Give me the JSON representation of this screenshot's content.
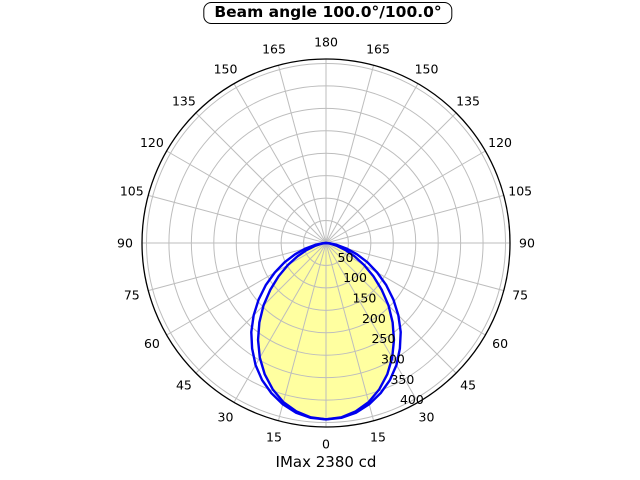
{
  "chart_data": {
    "type": "line",
    "projection": "polar",
    "title": "Beam angle 100.0°/100.0°",
    "caption": "IMax 2380 cd",
    "imax_cd": 2380,
    "beam_angle_plane1_deg": 100.0,
    "beam_angle_plane2_deg": 100.0,
    "theta_zero_position": "bottom",
    "theta_tick_step_deg": 15,
    "theta_labels": [
      0,
      15,
      30,
      45,
      60,
      75,
      90,
      105,
      120,
      135,
      150,
      165,
      180
    ],
    "r_ticks": [
      50,
      100,
      150,
      200,
      250,
      300,
      350,
      400
    ],
    "r_axis_max": 410,
    "r_label_angle_deg": 25,
    "grid_on": true,
    "grid_color": "#bdbdbd",
    "boundary_color": "#000000",
    "fill_color": "#ffffa0",
    "curve_color": "#0000ee",
    "angles_deg": [
      -90,
      -85,
      -80,
      -75,
      -70,
      -65,
      -60,
      -55,
      -50,
      -45,
      -40,
      -35,
      -30,
      -25,
      -20,
      -15,
      -10,
      -5,
      0,
      5,
      10,
      15,
      20,
      25,
      30,
      35,
      40,
      45,
      50,
      55,
      60,
      65,
      70,
      75,
      80,
      85,
      90
    ],
    "series": [
      {
        "name": "beam-curve-outer-plane",
        "filled": false,
        "values": [
          0,
          9,
          25,
          47,
          73,
          102,
          132,
          164,
          196,
          228,
          259,
          287,
          314,
          337,
          356,
          372,
          384,
          391,
          393,
          391,
          384,
          372,
          356,
          337,
          314,
          287,
          259,
          228,
          196,
          164,
          132,
          102,
          73,
          47,
          25,
          9,
          0
        ]
      },
      {
        "name": "beam-curve-inner-plane",
        "filled": true,
        "values": [
          0,
          3,
          12,
          26,
          46,
          70,
          98,
          129,
          162,
          197,
          231,
          264,
          295,
          323,
          347,
          367,
          381,
          390,
          393,
          390,
          381,
          367,
          347,
          323,
          295,
          264,
          231,
          197,
          162,
          129,
          98,
          70,
          46,
          26,
          12,
          3,
          0
        ]
      }
    ]
  }
}
